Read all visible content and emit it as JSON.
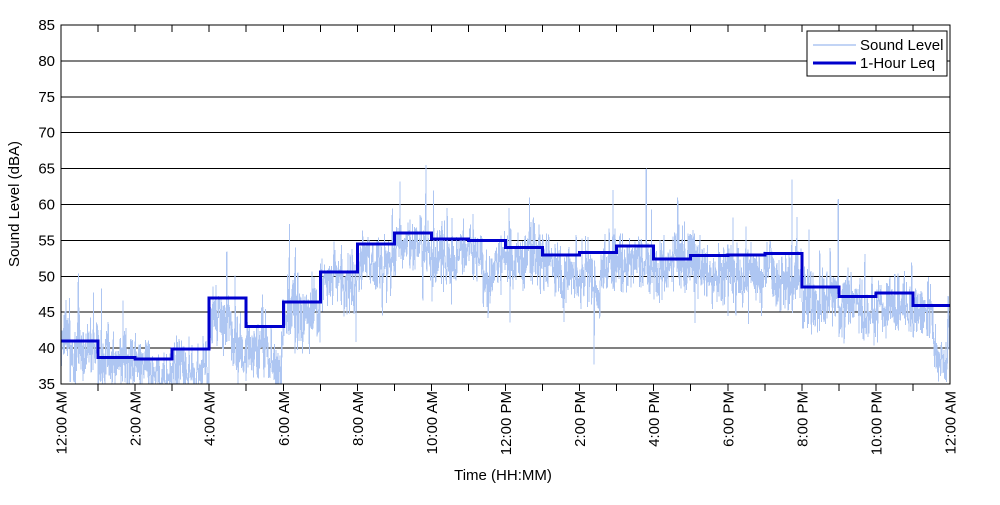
{
  "chart_data": {
    "type": "line",
    "title": "",
    "xlabel": "Time (HH:MM)",
    "ylabel": "Sound Level (dBA)",
    "ylim": [
      35,
      85
    ],
    "yticks": [
      35,
      40,
      45,
      50,
      55,
      60,
      65,
      70,
      75,
      80,
      85
    ],
    "x_hours_range": [
      0,
      24
    ],
    "minor_xtick_every_hours": 1,
    "grid": "horizontal",
    "xticks": [
      {
        "hour": 0,
        "label": "12:00 AM"
      },
      {
        "hour": 2,
        "label": "2:00 AM"
      },
      {
        "hour": 4,
        "label": "4:00 AM"
      },
      {
        "hour": 6,
        "label": "6:00 AM"
      },
      {
        "hour": 8,
        "label": "8:00 AM"
      },
      {
        "hour": 10,
        "label": "10:00 AM"
      },
      {
        "hour": 12,
        "label": "12:00 PM"
      },
      {
        "hour": 14,
        "label": "2:00 PM"
      },
      {
        "hour": 16,
        "label": "4:00 PM"
      },
      {
        "hour": 18,
        "label": "6:00 PM"
      },
      {
        "hour": 20,
        "label": "8:00 PM"
      },
      {
        "hour": 22,
        "label": "10:00 PM"
      },
      {
        "hour": 24,
        "label": "12:00 AM"
      }
    ],
    "legend": {
      "position": "top-right"
    },
    "series": [
      {
        "name": "Sound Level",
        "type": "noisy-samples",
        "color": "#aec6f2",
        "width": 1,
        "sample_interval_seconds": 30,
        "notable_spikes": [
          {
            "hour": 9.85,
            "dba": 65.5
          },
          {
            "hour": 15.8,
            "dba": 65.0
          },
          {
            "hour": 19.73,
            "dba": 63.5
          },
          {
            "hour": 14.9,
            "dba": 62.0
          },
          {
            "hour": 12.65,
            "dba": 61.0
          },
          {
            "hour": 16.65,
            "dba": 61.0
          }
        ],
        "quiet_spells": [
          {
            "start": 0.0,
            "end": 0.22,
            "offset": 3.0
          },
          {
            "start": 4.6,
            "end": 5.0,
            "offset": -4.0
          },
          {
            "start": 5.6,
            "end": 5.95,
            "offset": -5.0
          },
          {
            "start": 11.4,
            "end": 11.65,
            "offset": -4.0
          },
          {
            "start": 14.3,
            "end": 14.55,
            "offset": -4.0
          },
          {
            "start": 23.55,
            "end": 23.93,
            "offset": -5.0
          }
        ],
        "synthesis": {
          "seed": 20240,
          "base_offset": -1.8,
          "sigma": 2.1,
          "slow_sigma": 1.3,
          "slow_alpha": 0.99,
          "slow_clamp": 1.8,
          "spike_prob": 0.014,
          "spike_min": 3.0,
          "spike_max": 7.0,
          "tall_spike_prob": 0.005,
          "tall_spike_min": 7.0,
          "tall_spike_max": 12.0,
          "dip_prob": 0.015,
          "dip_min": 3.0,
          "dip_max": 8.0,
          "floor": 35,
          "ceil": 85
        }
      },
      {
        "name": "1-Hour Leq",
        "type": "step",
        "color": "#0000cc",
        "width": 3,
        "hour_values": [
          41.0,
          38.7,
          38.5,
          39.9,
          47.0,
          43.0,
          46.4,
          50.6,
          54.5,
          56.0,
          55.2,
          55.0,
          54.0,
          53.0,
          53.3,
          54.2,
          52.4,
          52.9,
          53.0,
          53.2,
          48.5,
          47.2,
          47.7,
          45.9
        ]
      }
    ]
  }
}
